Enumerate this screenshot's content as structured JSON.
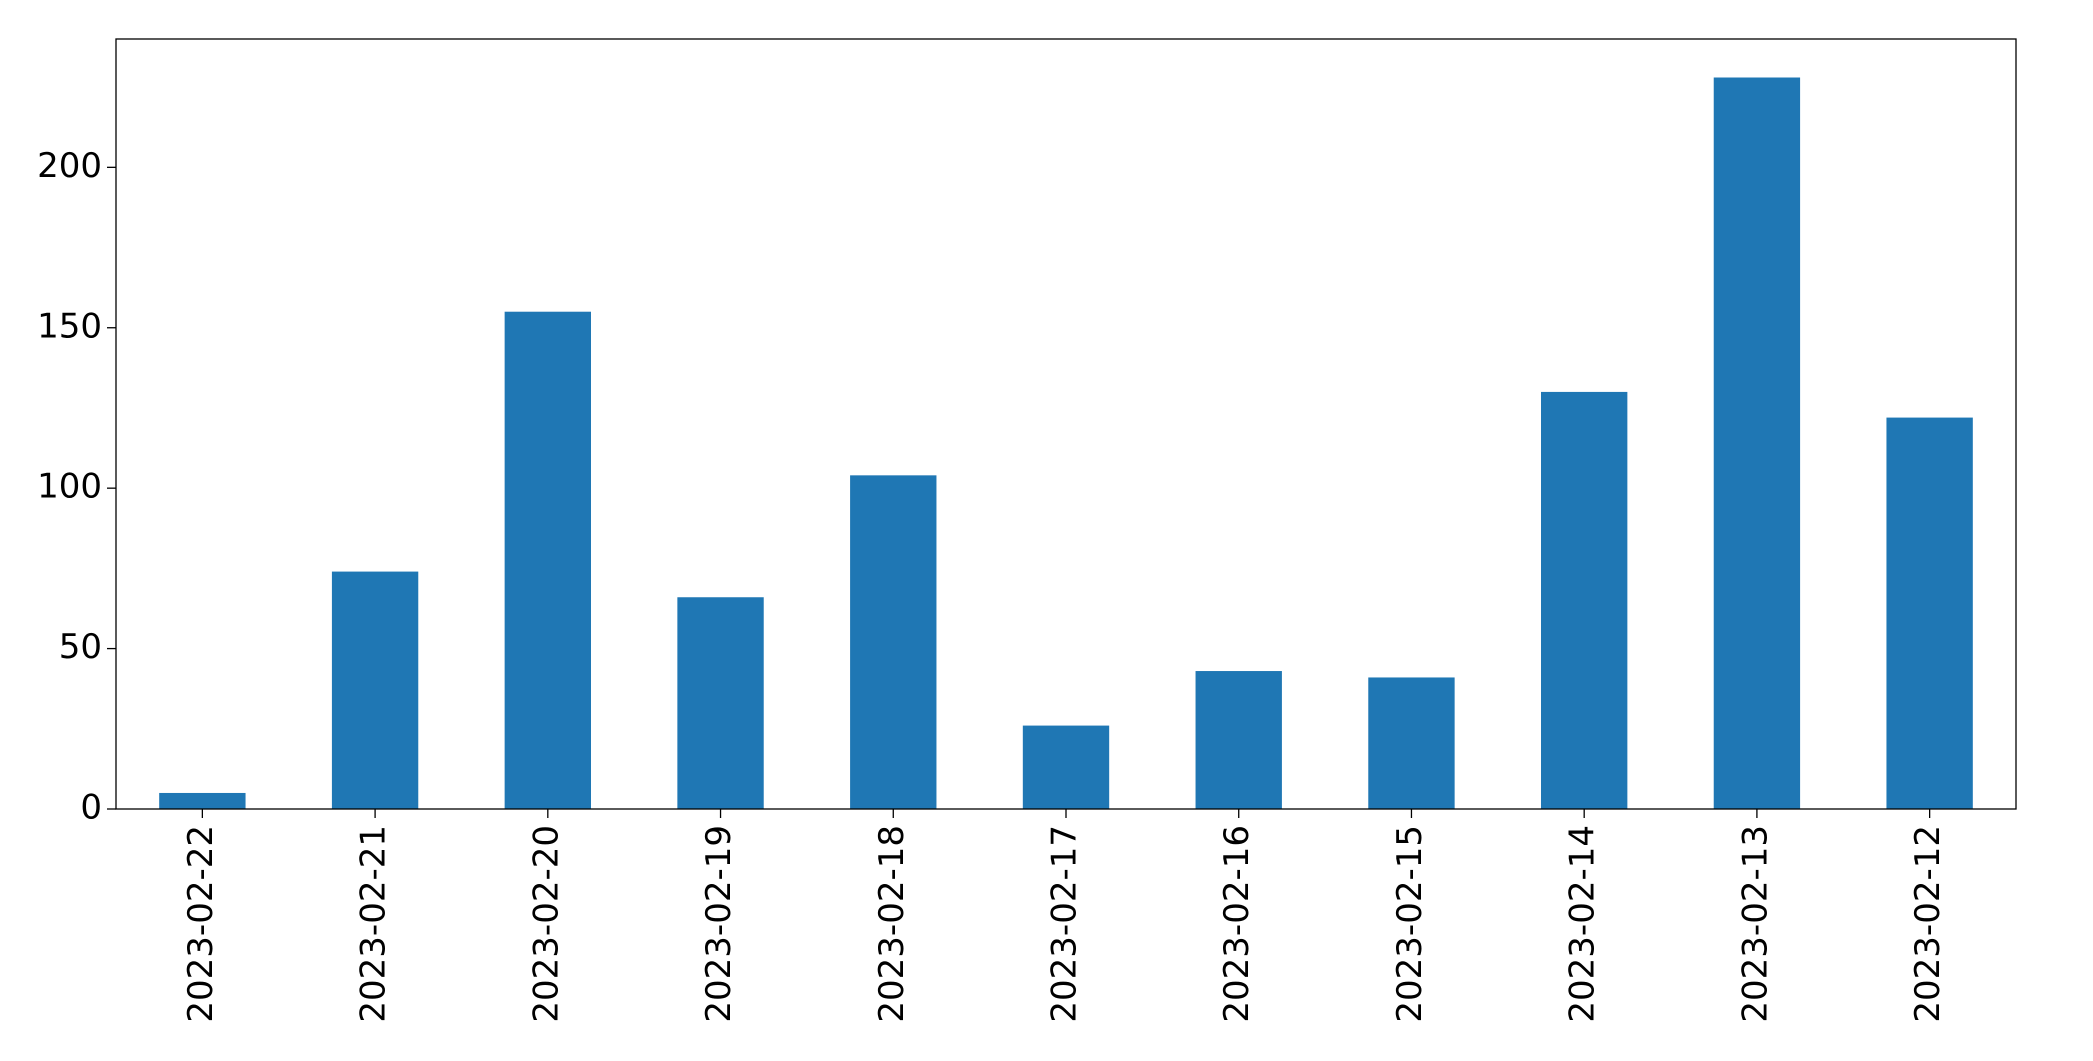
{
  "chart_data": {
    "type": "bar",
    "categories": [
      "2023-02-22",
      "2023-02-21",
      "2023-02-20",
      "2023-02-19",
      "2023-02-18",
      "2023-02-17",
      "2023-02-16",
      "2023-02-15",
      "2023-02-14",
      "2023-02-13",
      "2023-02-12"
    ],
    "values": [
      5,
      74,
      155,
      66,
      104,
      26,
      43,
      41,
      130,
      228,
      122
    ],
    "color": "#1f77b4",
    "ylim": [
      0,
      240
    ],
    "yticks": [
      0,
      50,
      100,
      150,
      200
    ],
    "grid": false
  }
}
